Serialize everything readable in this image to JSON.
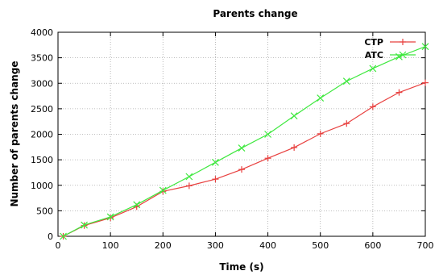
{
  "chart_data": {
    "type": "line",
    "title": "Parents change",
    "xlabel": "Time (s)",
    "ylabel": "Number of parents change",
    "xlim": [
      0,
      700
    ],
    "ylim": [
      0,
      4000
    ],
    "x_ticks": [
      0,
      100,
      200,
      300,
      400,
      500,
      600,
      700
    ],
    "y_ticks": [
      0,
      500,
      1000,
      1500,
      2000,
      2500,
      3000,
      3500,
      4000
    ],
    "grid": true,
    "legend_position": "top-right",
    "series": [
      {
        "name": "CTP",
        "color": "#e8403f",
        "marker": "plus",
        "x": [
          10,
          50,
          100,
          150,
          200,
          250,
          300,
          350,
          400,
          450,
          500,
          550,
          600,
          650,
          700
        ],
        "y": [
          0,
          210,
          360,
          580,
          880,
          990,
          1120,
          1310,
          1530,
          1740,
          2010,
          2210,
          2540,
          2820,
          3010
        ]
      },
      {
        "name": "ATC",
        "color": "#3fe83f",
        "marker": "x",
        "x": [
          10,
          50,
          100,
          150,
          200,
          250,
          300,
          350,
          400,
          450,
          500,
          550,
          600,
          650,
          700
        ],
        "y": [
          0,
          220,
          380,
          620,
          900,
          1170,
          1450,
          1730,
          2000,
          2360,
          2710,
          3040,
          3290,
          3520,
          3720
        ]
      }
    ]
  }
}
